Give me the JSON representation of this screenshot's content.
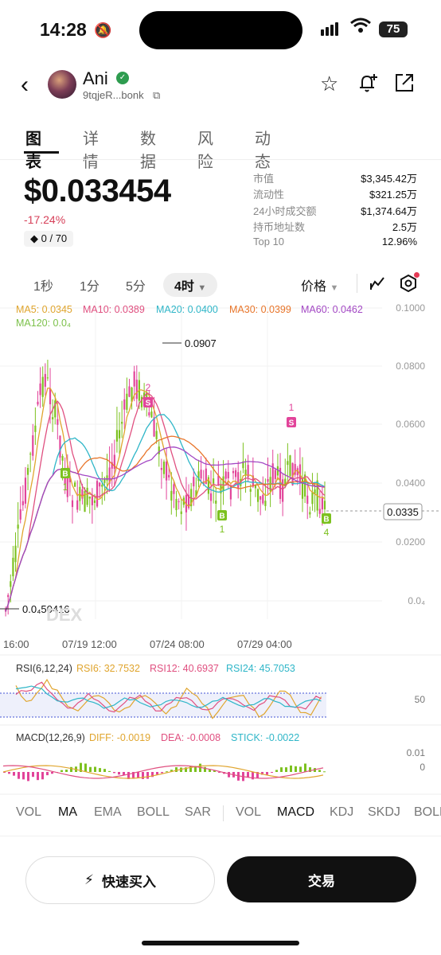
{
  "status": {
    "time": "14:28",
    "battery": "75"
  },
  "token": {
    "name": "Ani",
    "address": "9tqjeR...bonk"
  },
  "tabs": [
    "图表",
    "详情",
    "数据",
    "风险",
    "动态"
  ],
  "price": {
    "value": "$0.033454",
    "change": "-17.24%",
    "holders_badge": "0 / 70"
  },
  "stats": [
    {
      "k": "市值",
      "v": "$3,345.42万"
    },
    {
      "k": "流动性",
      "v": "$321.25万"
    },
    {
      "k": "24小时成交额",
      "v": "$1,374.64万"
    },
    {
      "k": "持币地址数",
      "v": "2.5万"
    },
    {
      "k": "Top 10",
      "v": "12.96%"
    }
  ],
  "intervals": [
    "1秒",
    "1分",
    "5分",
    "4时"
  ],
  "price_dropdown": "价格",
  "ma_legend": [
    {
      "label": "MA5: 0.0345",
      "color": "#e0a52e"
    },
    {
      "label": "MA10: 0.0389",
      "color": "#e05080"
    },
    {
      "label": "MA20: 0.0400",
      "color": "#2fb6c8"
    },
    {
      "label": "MA30: 0.0399",
      "color": "#e8752a"
    },
    {
      "label": "MA60: 0.0462",
      "color": "#a348c4"
    },
    {
      "label": "MA120: 0.0₄",
      "color": "#7cc14a"
    }
  ],
  "y_axis": [
    "0.1000",
    "0.0800",
    "0.0600",
    "0.0400",
    "0.0200",
    "0.0₄"
  ],
  "x_axis": [
    "16:00",
    "07/19 12:00",
    "07/24 08:00",
    "07/29 04:00"
  ],
  "annotations": {
    "high": "0.0907",
    "low": "0.0₄50416",
    "current": "0.0335",
    "watermark": "DEX"
  },
  "markers": [
    {
      "letter": "S",
      "num": "2"
    },
    {
      "letter": "S",
      "num": "1"
    },
    {
      "letter": "B",
      "num": "1"
    },
    {
      "letter": "B",
      "num": "1"
    },
    {
      "letter": "B",
      "num": "1"
    },
    {
      "letter": "B",
      "num": "4"
    }
  ],
  "rsi": {
    "title": "RSI(6,12,24)",
    "rsi6": "RSI6: 32.7532",
    "rsi12": "RSI12: 40.6937",
    "rsi24": "RSI24: 45.7053",
    "level": "50"
  },
  "macd": {
    "title": "MACD(12,26,9)",
    "diff": "DIFF: -0.0019",
    "dea": "DEA: -0.0008",
    "stick": "STICK: -0.0022",
    "ticks": [
      "0.01",
      "0"
    ]
  },
  "indicator_tabs": [
    "VOL",
    "MA",
    "EMA",
    "BOLL",
    "SAR",
    "VOL",
    "MACD",
    "KDJ",
    "SKDJ",
    "BOLL"
  ],
  "buttons": {
    "quick_buy": "快速买入",
    "trade": "交易"
  }
}
